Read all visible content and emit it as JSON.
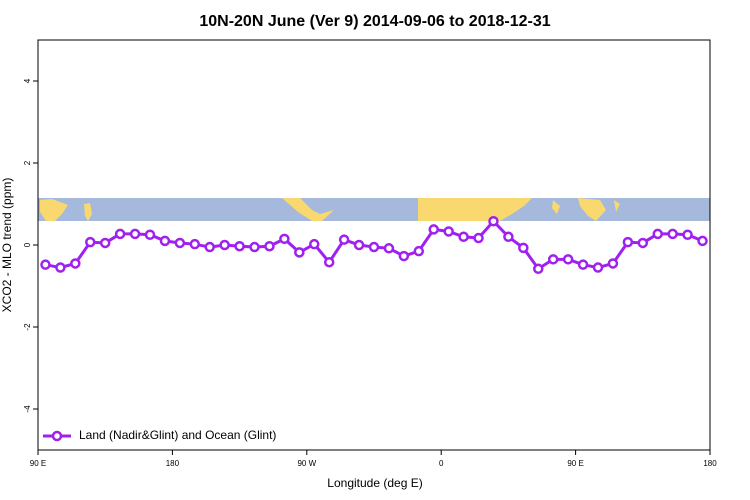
{
  "chart_data": {
    "type": "line",
    "title": "10N-20N June (Ver 9)   2014-09-06 to 2018-12-31",
    "x_label": "Longitude (deg E)",
    "y_label": "XCO2 - MLO trend (ppm)",
    "x": [
      95,
      105,
      115,
      125,
      135,
      145,
      155,
      165,
      175,
      185,
      195,
      205,
      215,
      225,
      235,
      245,
      255,
      265,
      275,
      285,
      295,
      305,
      315,
      325,
      335,
      345,
      355,
      365,
      375,
      385,
      395,
      405,
      415,
      425,
      435,
      445,
      455,
      465,
      475,
      485,
      495,
      505,
      515,
      525,
      535
    ],
    "series": [
      {
        "name": "Land (Nadir&Glint) and Ocean (Glint)",
        "color": "#a020f0",
        "values": [
          -0.48,
          -0.55,
          -0.45,
          0.07,
          0.05,
          0.27,
          0.27,
          0.25,
          0.1,
          0.05,
          0.02,
          -0.05,
          0,
          -0.03,
          -0.05,
          -0.03,
          0.15,
          -0.18,
          0.02,
          -0.42,
          0.13,
          0,
          -0.05,
          -0.08,
          -0.27,
          -0.15,
          0.38,
          0.33,
          0.2,
          0.17,
          0.58,
          0.2,
          -0.07,
          -0.58,
          -0.35,
          -0.35,
          -0.48,
          -0.55,
          -0.45,
          0.07,
          0.05,
          0.27,
          0.27,
          0.25,
          0.1
        ]
      }
    ],
    "xlim": [
      90,
      540
    ],
    "xticks": [
      {
        "value": 90,
        "label": "90 E"
      },
      180,
      {
        "value": 270,
        "label": "90 W"
      },
      {
        "value": 360,
        "label": "0"
      },
      {
        "value": 450,
        "label": "90 E"
      },
      {
        "value": 540,
        "label": "180"
      }
    ],
    "ylim": [
      -5,
      5
    ],
    "yticks": [
      -4,
      -2,
      0,
      2,
      4
    ],
    "legend": "bottom-left"
  }
}
